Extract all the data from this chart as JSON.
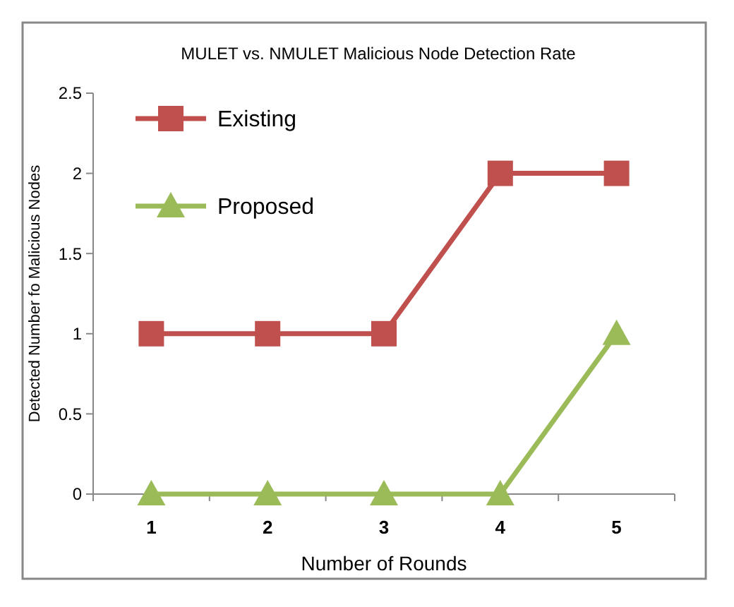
{
  "chart_data": {
    "type": "line",
    "title": "MULET vs. NMULET Malicious Node Detection Rate",
    "xlabel": "Number of Rounds",
    "ylabel": "Detected Number fo Malicious Nodes",
    "categories": [
      "1",
      "2",
      "3",
      "4",
      "5"
    ],
    "series": [
      {
        "name": "Existing",
        "color": "#c0504d",
        "marker": "square",
        "values": [
          1,
          1,
          1,
          2,
          2
        ]
      },
      {
        "name": "Proposed",
        "color": "#9bbb59",
        "marker": "triangle",
        "values": [
          0,
          0,
          0,
          0,
          1
        ]
      }
    ],
    "ylim": [
      0,
      2.5
    ],
    "yticks": [
      0,
      0.5,
      1,
      1.5,
      2,
      2.5
    ],
    "grid": false,
    "legend": "top left"
  }
}
